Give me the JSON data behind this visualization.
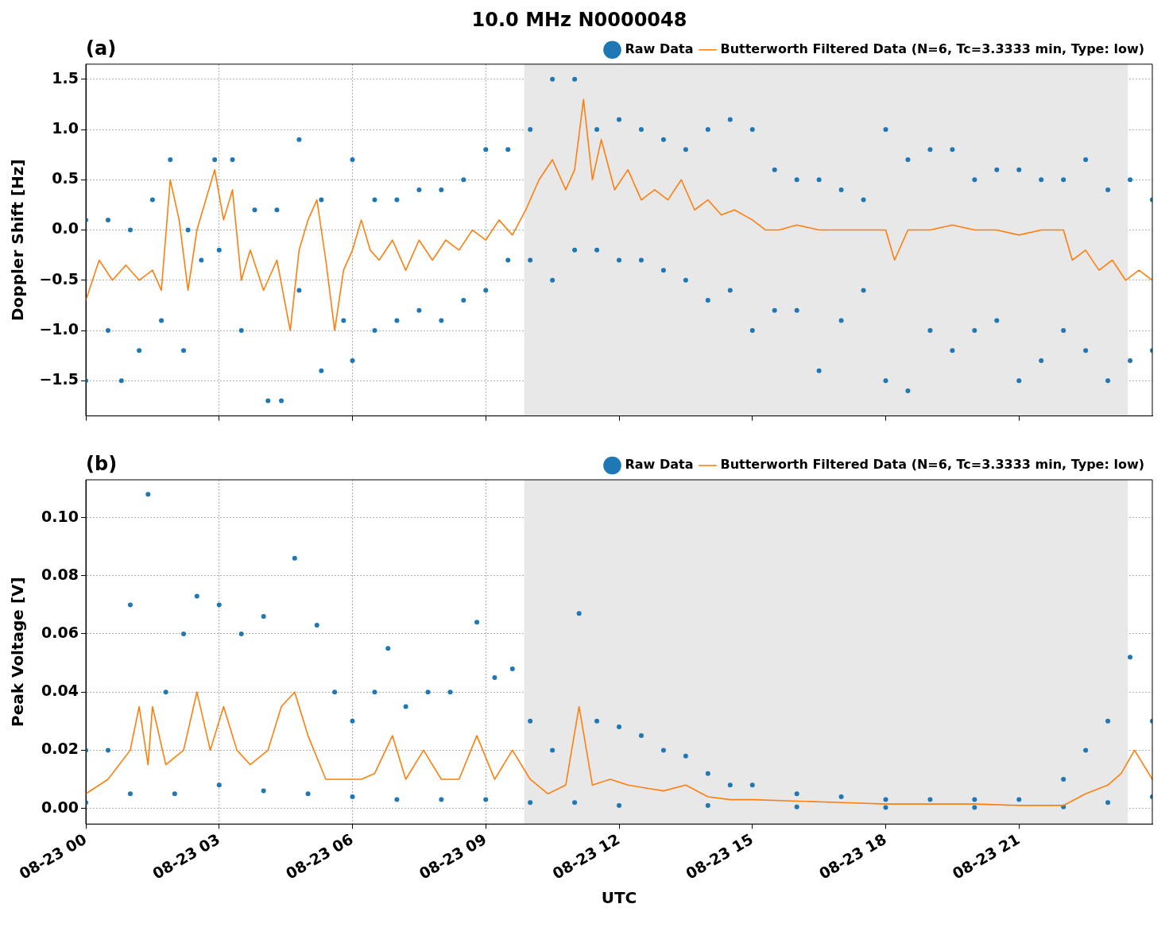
{
  "chart_data": [
    {
      "type": "scatter",
      "title": "10.0 MHz N0000048",
      "ylabel": "Doppler Shift [Hz]",
      "annotations": [
        "(a)"
      ],
      "xlim": [
        "--08-23T00:00",
        "--08-24T00:00"
      ],
      "xticks": [
        {
          "value": "--08-23T00:00",
          "label": null
        },
        {
          "value": "--08-23T03:00",
          "label": null
        },
        {
          "value": "--08-23T06:00",
          "label": null
        },
        {
          "value": "--08-23T09:00",
          "label": null
        },
        {
          "value": "--08-23T12:00",
          "label": null
        },
        {
          "value": "--08-23T15:00",
          "label": null
        },
        {
          "value": "--08-23T18:00",
          "label": null
        },
        {
          "value": "--08-23T21:00",
          "label": null
        }
      ],
      "ylim": [
        -1.85,
        1.65
      ],
      "yticks": [
        {
          "value": -1.5,
          "label": "−1.5"
        },
        {
          "value": -1.0,
          "label": "−1.0"
        },
        {
          "value": -0.5,
          "label": "−0.5"
        },
        {
          "value": 0,
          "label": "0.0"
        },
        {
          "value": 0.5,
          "label": "0.5"
        },
        {
          "value": 1,
          "label": "1.0"
        },
        {
          "value": 1.5,
          "label": "1.5"
        }
      ],
      "tick_labels": "y",
      "grid": true,
      "legend": "top right",
      "bands": [
        {
          "axis": "x",
          "from": "--08-23T09:52",
          "to": "--08-23T23:27",
          "color": "#e8e8e8"
        }
      ],
      "series": [
        {
          "name": "Raw Data",
          "type": "scatter",
          "marker": "circle",
          "color": "#1f77b4",
          "x": [
            "--08-23T00:00",
            "--08-23T00:30",
            "--08-23T01:00",
            "--08-23T01:30",
            "--08-23T01:54",
            "--08-23T02:18",
            "--08-23T02:54",
            "--08-23T03:18",
            "--08-23T03:48",
            "--08-23T04:18",
            "--08-23T04:48",
            "--08-23T05:18",
            "--08-23T06:00",
            "--08-23T06:30",
            "--08-23T07:00",
            "--08-23T07:30",
            "--08-23T08:00",
            "--08-23T08:30",
            "--08-23T09:00",
            "--08-23T09:30",
            "--08-23T10:00",
            "--08-23T10:30",
            "--08-23T11:00",
            "--08-23T11:30",
            "--08-23T12:00",
            "--08-23T12:30",
            "--08-23T13:00",
            "--08-23T13:30",
            "--08-23T14:00",
            "--08-23T14:30",
            "--08-23T15:00",
            "--08-23T15:30",
            "--08-23T16:00",
            "--08-23T16:30",
            "--08-23T17:00",
            "--08-23T17:30",
            "--08-23T18:00",
            "--08-23T18:30",
            "--08-23T19:00",
            "--08-23T19:30",
            "--08-23T20:00",
            "--08-23T20:30",
            "--08-23T21:00",
            "--08-23T21:30",
            "--08-23T22:00",
            "--08-23T22:30",
            "--08-23T23:00",
            "--08-23T23:30",
            "--08-24T00:00",
            "--08-23T00:00",
            "--08-23T00:30",
            "--08-23T00:48",
            "--08-23T01:12",
            "--08-23T01:42",
            "--08-23T02:12",
            "--08-23T02:36",
            "--08-23T03:00",
            "--08-23T03:30",
            "--08-23T04:06",
            "--08-23T04:24",
            "--08-23T04:48",
            "--08-23T05:18",
            "--08-23T05:48",
            "--08-23T06:00",
            "--08-23T06:30",
            "--08-23T07:00",
            "--08-23T07:30",
            "--08-23T08:00",
            "--08-23T08:30",
            "--08-23T09:00",
            "--08-23T09:30",
            "--08-23T10:00",
            "--08-23T10:30",
            "--08-23T11:00",
            "--08-23T11:30",
            "--08-23T12:00",
            "--08-23T12:30",
            "--08-23T13:00",
            "--08-23T13:30",
            "--08-23T14:00",
            "--08-23T14:30",
            "--08-23T15:00",
            "--08-23T15:30",
            "--08-23T16:00",
            "--08-23T16:30",
            "--08-23T17:00",
            "--08-23T17:30",
            "--08-23T18:00",
            "--08-23T18:30",
            "--08-23T19:00",
            "--08-23T19:30",
            "--08-23T20:00",
            "--08-23T20:30",
            "--08-23T21:00",
            "--08-23T21:30",
            "--08-23T22:00",
            "--08-23T22:30",
            "--08-23T23:00",
            "--08-23T23:30",
            "--08-24T00:00"
          ],
          "values": [
            0.1,
            0.1,
            0.0,
            0.3,
            0.7,
            0.0,
            0.7,
            0.7,
            0.2,
            0.2,
            0.9,
            0.3,
            0.7,
            0.3,
            0.3,
            0.4,
            0.4,
            0.5,
            0.8,
            0.8,
            1.0,
            1.5,
            1.5,
            1.0,
            1.1,
            1.0,
            0.9,
            0.8,
            1.0,
            1.1,
            1.0,
            0.6,
            0.5,
            0.5,
            0.4,
            0.3,
            1.0,
            0.7,
            0.8,
            0.8,
            0.5,
            0.6,
            0.6,
            0.5,
            0.5,
            0.7,
            0.4,
            0.5,
            0.3,
            -1.5,
            -1.0,
            -1.5,
            -1.2,
            -0.9,
            -1.2,
            -0.3,
            -0.2,
            -1.0,
            -1.7,
            -1.7,
            -0.6,
            -1.4,
            -0.9,
            -1.3,
            -1.0,
            -0.9,
            -0.8,
            -0.9,
            -0.7,
            -0.6,
            -0.3,
            -0.3,
            -0.5,
            -0.2,
            -0.2,
            -0.3,
            -0.3,
            -0.4,
            -0.5,
            -0.7,
            -0.6,
            -1.0,
            -0.8,
            -0.8,
            -1.4,
            -0.9,
            -0.6,
            -1.5,
            -1.6,
            -1.0,
            -1.2,
            -1.0,
            -0.9,
            -1.5,
            -1.3,
            -1.0,
            -1.2,
            -1.5,
            -1.3,
            -1.2
          ]
        },
        {
          "name": "Butterworth Filtered Data (N=6, Tc=3.3333 min, Type: low)",
          "type": "line",
          "marker": "none",
          "color": "#ff7f0e",
          "x": [
            "--08-23T00:00",
            "--08-23T00:18",
            "--08-23T00:36",
            "--08-23T00:54",
            "--08-23T01:12",
            "--08-23T01:30",
            "--08-23T01:42",
            "--08-23T01:54",
            "--08-23T02:06",
            "--08-23T02:18",
            "--08-23T02:30",
            "--08-23T02:42",
            "--08-23T02:54",
            "--08-23T03:06",
            "--08-23T03:18",
            "--08-23T03:30",
            "--08-23T03:42",
            "--08-23T04:00",
            "--08-23T04:18",
            "--08-23T04:36",
            "--08-23T04:48",
            "--08-23T05:00",
            "--08-23T05:12",
            "--08-23T05:24",
            "--08-23T05:36",
            "--08-23T05:48",
            "--08-23T06:00",
            "--08-23T06:12",
            "--08-23T06:24",
            "--08-23T06:36",
            "--08-23T06:54",
            "--08-23T07:12",
            "--08-23T07:30",
            "--08-23T07:48",
            "--08-23T08:06",
            "--08-23T08:24",
            "--08-23T08:42",
            "--08-23T09:00",
            "--08-23T09:18",
            "--08-23T09:36",
            "--08-23T09:54",
            "--08-23T10:12",
            "--08-23T10:30",
            "--08-23T10:48",
            "--08-23T11:00",
            "--08-23T11:12",
            "--08-23T11:24",
            "--08-23T11:36",
            "--08-23T11:54",
            "--08-23T12:12",
            "--08-23T12:30",
            "--08-23T12:48",
            "--08-23T13:06",
            "--08-23T13:24",
            "--08-23T13:42",
            "--08-23T14:00",
            "--08-23T14:18",
            "--08-23T14:36",
            "--08-23T15:00",
            "--08-23T15:18",
            "--08-23T15:36",
            "--08-23T16:00",
            "--08-23T16:30",
            "--08-23T17:00",
            "--08-23T17:30",
            "--08-23T18:00",
            "--08-23T18:12",
            "--08-23T18:30",
            "--08-23T19:00",
            "--08-23T19:30",
            "--08-23T20:00",
            "--08-23T20:30",
            "--08-23T21:00",
            "--08-23T21:30",
            "--08-23T22:00",
            "--08-23T22:12",
            "--08-23T22:30",
            "--08-23T22:48",
            "--08-23T23:06",
            "--08-23T23:24",
            "--08-23T23:42",
            "--08-24T00:00"
          ],
          "values": [
            -0.7,
            -0.3,
            -0.5,
            -0.35,
            -0.5,
            -0.4,
            -0.6,
            0.5,
            0.1,
            -0.6,
            0.0,
            0.3,
            0.6,
            0.1,
            0.4,
            -0.5,
            -0.2,
            -0.6,
            -0.3,
            -1.0,
            -0.2,
            0.1,
            0.3,
            -0.3,
            -1.0,
            -0.4,
            -0.2,
            0.1,
            -0.2,
            -0.3,
            -0.1,
            -0.4,
            -0.1,
            -0.3,
            -0.1,
            -0.2,
            0.0,
            -0.1,
            0.1,
            -0.05,
            0.2,
            0.5,
            0.7,
            0.4,
            0.6,
            1.3,
            0.5,
            0.9,
            0.4,
            0.6,
            0.3,
            0.4,
            0.3,
            0.5,
            0.2,
            0.3,
            0.15,
            0.2,
            0.1,
            0.0,
            0.0,
            0.05,
            0.0,
            0.0,
            0.0,
            0.0,
            -0.3,
            0.0,
            0.0,
            0.05,
            0.0,
            0.0,
            -0.05,
            0.0,
            0.0,
            -0.3,
            -0.2,
            -0.4,
            -0.3,
            -0.5,
            -0.4,
            -0.5
          ]
        }
      ]
    },
    {
      "type": "scatter",
      "xlabel": "UTC",
      "ylabel": "Peak Voltage [V]",
      "annotations": [
        "(b)"
      ],
      "xlim": [
        "--08-23T00:00",
        "--08-24T00:00"
      ],
      "xticks": [
        {
          "value": "--08-23T00:00",
          "label": "08-23 00"
        },
        {
          "value": "--08-23T03:00",
          "label": "08-23 03"
        },
        {
          "value": "--08-23T06:00",
          "label": "08-23 06"
        },
        {
          "value": "--08-23T09:00",
          "label": "08-23 09"
        },
        {
          "value": "--08-23T12:00",
          "label": "08-23 12"
        },
        {
          "value": "--08-23T15:00",
          "label": "08-23 15"
        },
        {
          "value": "--08-23T18:00",
          "label": "08-23 18"
        },
        {
          "value": "--08-23T21:00",
          "label": "08-23 21"
        }
      ],
      "ylim": [
        -0.0054,
        0.113
      ],
      "yticks": [
        {
          "value": 0,
          "label": "0.00"
        },
        0.02,
        0.04,
        0.06,
        0.08,
        {
          "value": 0.1,
          "label": "0.10"
        }
      ],
      "grid": true,
      "legend": "top right",
      "bands": [
        {
          "axis": "x",
          "from": "--08-23T09:52",
          "to": "--08-23T23:27",
          "color": "#e8e8e8"
        }
      ],
      "series": [
        {
          "name": "Raw Data",
          "type": "scatter",
          "marker": "circle",
          "color": "#1f77b4",
          "x": [
            "--08-23T00:00",
            "--08-23T00:30",
            "--08-23T01:00",
            "--08-23T01:24",
            "--08-23T01:48",
            "--08-23T02:12",
            "--08-23T02:30",
            "--08-23T03:00",
            "--08-23T03:30",
            "--08-23T04:00",
            "--08-23T04:42",
            "--08-23T05:12",
            "--08-23T05:36",
            "--08-23T06:00",
            "--08-23T06:30",
            "--08-23T06:48",
            "--08-23T07:12",
            "--08-23T07:42",
            "--08-23T08:12",
            "--08-23T08:48",
            "--08-23T09:12",
            "--08-23T09:36",
            "--08-23T10:00",
            "--08-23T10:30",
            "--08-23T11:06",
            "--08-23T11:30",
            "--08-23T12:00",
            "--08-23T12:30",
            "--08-23T13:00",
            "--08-23T13:30",
            "--08-23T14:00",
            "--08-23T14:30",
            "--08-23T15:00",
            "--08-23T16:00",
            "--08-23T17:00",
            "--08-23T18:00",
            "--08-23T19:00",
            "--08-23T20:00",
            "--08-23T21:00",
            "--08-23T22:00",
            "--08-23T22:30",
            "--08-23T23:00",
            "--08-23T23:30",
            "--08-24T00:00",
            "--08-23T00:00",
            "--08-23T01:00",
            "--08-23T02:00",
            "--08-23T03:00",
            "--08-23T04:00",
            "--08-23T05:00",
            "--08-23T06:00",
            "--08-23T07:00",
            "--08-23T08:00",
            "--08-23T09:00",
            "--08-23T10:00",
            "--08-23T11:00",
            "--08-23T12:00",
            "--08-23T14:00",
            "--08-23T16:00",
            "--08-23T18:00",
            "--08-23T20:00",
            "--08-23T22:00",
            "--08-23T23:00",
            "--08-24T00:00"
          ],
          "values": [
            0.02,
            0.02,
            0.07,
            0.108,
            0.04,
            0.06,
            0.073,
            0.07,
            0.06,
            0.066,
            0.086,
            0.063,
            0.04,
            0.03,
            0.04,
            0.055,
            0.035,
            0.04,
            0.04,
            0.064,
            0.045,
            0.048,
            0.03,
            0.02,
            0.067,
            0.03,
            0.028,
            0.025,
            0.02,
            0.018,
            0.012,
            0.008,
            0.008,
            0.005,
            0.004,
            0.003,
            0.003,
            0.003,
            0.003,
            0.01,
            0.02,
            0.03,
            0.052,
            0.03,
            0.002,
            0.005,
            0.005,
            0.008,
            0.006,
            0.005,
            0.004,
            0.003,
            0.003,
            0.003,
            0.002,
            0.002,
            0.001,
            0.001,
            0.0005,
            0.0003,
            0.0003,
            0.0005,
            0.002,
            0.004
          ]
        },
        {
          "name": "Butterworth Filtered Data (N=6, Tc=3.3333 min, Type: low)",
          "type": "line",
          "marker": "none",
          "color": "#ff7f0e",
          "x": [
            "--08-23T00:00",
            "--08-23T00:30",
            "--08-23T01:00",
            "--08-23T01:12",
            "--08-23T01:24",
            "--08-23T01:30",
            "--08-23T01:48",
            "--08-23T02:12",
            "--08-23T02:30",
            "--08-23T02:48",
            "--08-23T03:06",
            "--08-23T03:24",
            "--08-23T03:42",
            "--08-23T04:06",
            "--08-23T04:24",
            "--08-23T04:42",
            "--08-23T05:00",
            "--08-23T05:24",
            "--08-23T05:48",
            "--08-23T06:12",
            "--08-23T06:30",
            "--08-23T06:54",
            "--08-23T07:12",
            "--08-23T07:36",
            "--08-23T08:00",
            "--08-23T08:24",
            "--08-23T08:48",
            "--08-23T09:12",
            "--08-23T09:36",
            "--08-23T10:00",
            "--08-23T10:24",
            "--08-23T10:48",
            "--08-23T11:06",
            "--08-23T11:24",
            "--08-23T11:48",
            "--08-23T12:12",
            "--08-23T12:36",
            "--08-23T13:00",
            "--08-23T13:30",
            "--08-23T14:00",
            "--08-23T14:30",
            "--08-23T15:00",
            "--08-23T16:00",
            "--08-23T17:00",
            "--08-23T18:00",
            "--08-23T19:00",
            "--08-23T20:00",
            "--08-23T21:00",
            "--08-23T22:00",
            "--08-23T22:30",
            "--08-23T23:00",
            "--08-23T23:18",
            "--08-23T23:36",
            "--08-24T00:00"
          ],
          "values": [
            0.005,
            0.01,
            0.02,
            0.035,
            0.015,
            0.035,
            0.015,
            0.02,
            0.04,
            0.02,
            0.035,
            0.02,
            0.015,
            0.02,
            0.035,
            0.04,
            0.025,
            0.01,
            0.01,
            0.01,
            0.012,
            0.025,
            0.01,
            0.02,
            0.01,
            0.01,
            0.025,
            0.01,
            0.02,
            0.01,
            0.005,
            0.008,
            0.035,
            0.008,
            0.01,
            0.008,
            0.007,
            0.006,
            0.008,
            0.004,
            0.003,
            0.003,
            0.0025,
            0.002,
            0.0015,
            0.0015,
            0.0015,
            0.001,
            0.001,
            0.005,
            0.008,
            0.012,
            0.02,
            0.01
          ]
        }
      ]
    }
  ]
}
